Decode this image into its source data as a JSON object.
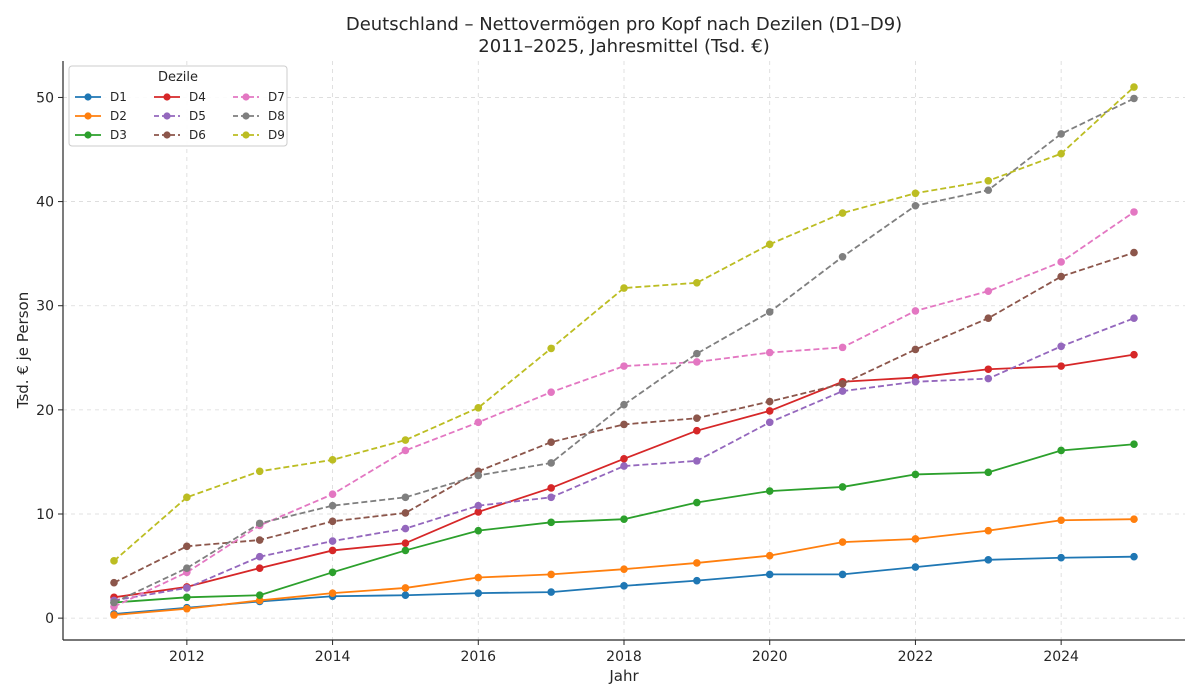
{
  "chart_data": {
    "type": "line",
    "title": "Deutschland – Nettovermögen pro Kopf nach Dezilen (D1–D9)",
    "subtitle": "2011–2025, Jahresmittel (Tsd. €)",
    "xlabel": "Jahr",
    "ylabel": "Tsd. € je Person",
    "xlim": [
      2010.3,
      2025.7
    ],
    "ylim": [
      -2.1,
      53.5
    ],
    "x_ticks": [
      2012,
      2014,
      2016,
      2018,
      2020,
      2022,
      2024
    ],
    "y_ticks": [
      0,
      10,
      20,
      30,
      40,
      50
    ],
    "grid": true,
    "legend": {
      "title": "Dezile",
      "placement": "top-left",
      "columns": 3
    },
    "x": [
      2011,
      2012,
      2013,
      2014,
      2015,
      2016,
      2017,
      2018,
      2019,
      2020,
      2021,
      2022,
      2023,
      2024,
      2025
    ],
    "series": [
      {
        "name": "D1",
        "color": "#1f77b4",
        "style": "solid",
        "values": [
          0.4,
          1.0,
          1.6,
          2.1,
          2.2,
          2.4,
          2.5,
          3.1,
          3.6,
          4.2,
          4.2,
          4.9,
          5.6,
          5.8,
          5.9
        ]
      },
      {
        "name": "D2",
        "color": "#ff7f0e",
        "style": "solid",
        "values": [
          0.3,
          0.9,
          1.7,
          2.4,
          2.9,
          3.9,
          4.2,
          4.7,
          5.3,
          6.0,
          7.3,
          7.6,
          8.4,
          9.4,
          9.5
        ]
      },
      {
        "name": "D3",
        "color": "#2ca02c",
        "style": "solid",
        "values": [
          1.5,
          2.0,
          2.2,
          4.4,
          6.5,
          8.4,
          9.2,
          9.5,
          11.1,
          12.2,
          12.6,
          13.8,
          14.0,
          16.1,
          16.7
        ]
      },
      {
        "name": "D4",
        "color": "#d62728",
        "style": "solid",
        "values": [
          2.0,
          3.0,
          4.8,
          6.5,
          7.2,
          10.2,
          12.5,
          15.3,
          18.0,
          19.9,
          22.7,
          23.1,
          23.9,
          24.2,
          25.3
        ]
      },
      {
        "name": "D5",
        "color": "#9467bd",
        "style": "dashed",
        "values": [
          1.7,
          2.9,
          5.9,
          7.4,
          8.6,
          10.8,
          11.6,
          14.6,
          15.1,
          18.8,
          21.8,
          22.7,
          23.0,
          26.1,
          28.8
        ]
      },
      {
        "name": "D6",
        "color": "#8c564b",
        "style": "dashed",
        "values": [
          3.4,
          6.9,
          7.5,
          9.3,
          10.1,
          14.1,
          16.9,
          18.6,
          19.2,
          20.8,
          22.5,
          25.8,
          28.8,
          32.8,
          35.1
        ]
      },
      {
        "name": "D7",
        "color": "#e377c2",
        "style": "dashed",
        "values": [
          1.1,
          4.4,
          8.9,
          11.9,
          16.1,
          18.8,
          21.7,
          24.2,
          24.6,
          25.5,
          26.0,
          29.5,
          31.4,
          34.2,
          39.0
        ]
      },
      {
        "name": "D8",
        "color": "#7f7f7f",
        "style": "dashed",
        "values": [
          1.5,
          4.8,
          9.1,
          10.8,
          11.6,
          13.7,
          14.9,
          20.5,
          25.4,
          29.4,
          34.7,
          39.6,
          41.1,
          46.5,
          49.9
        ]
      },
      {
        "name": "D9",
        "color": "#bcbd22",
        "style": "dashed",
        "values": [
          5.5,
          11.6,
          14.1,
          15.2,
          17.1,
          20.2,
          25.9,
          31.7,
          32.2,
          35.9,
          38.9,
          40.8,
          42.0,
          44.6,
          51.0
        ]
      }
    ]
  }
}
